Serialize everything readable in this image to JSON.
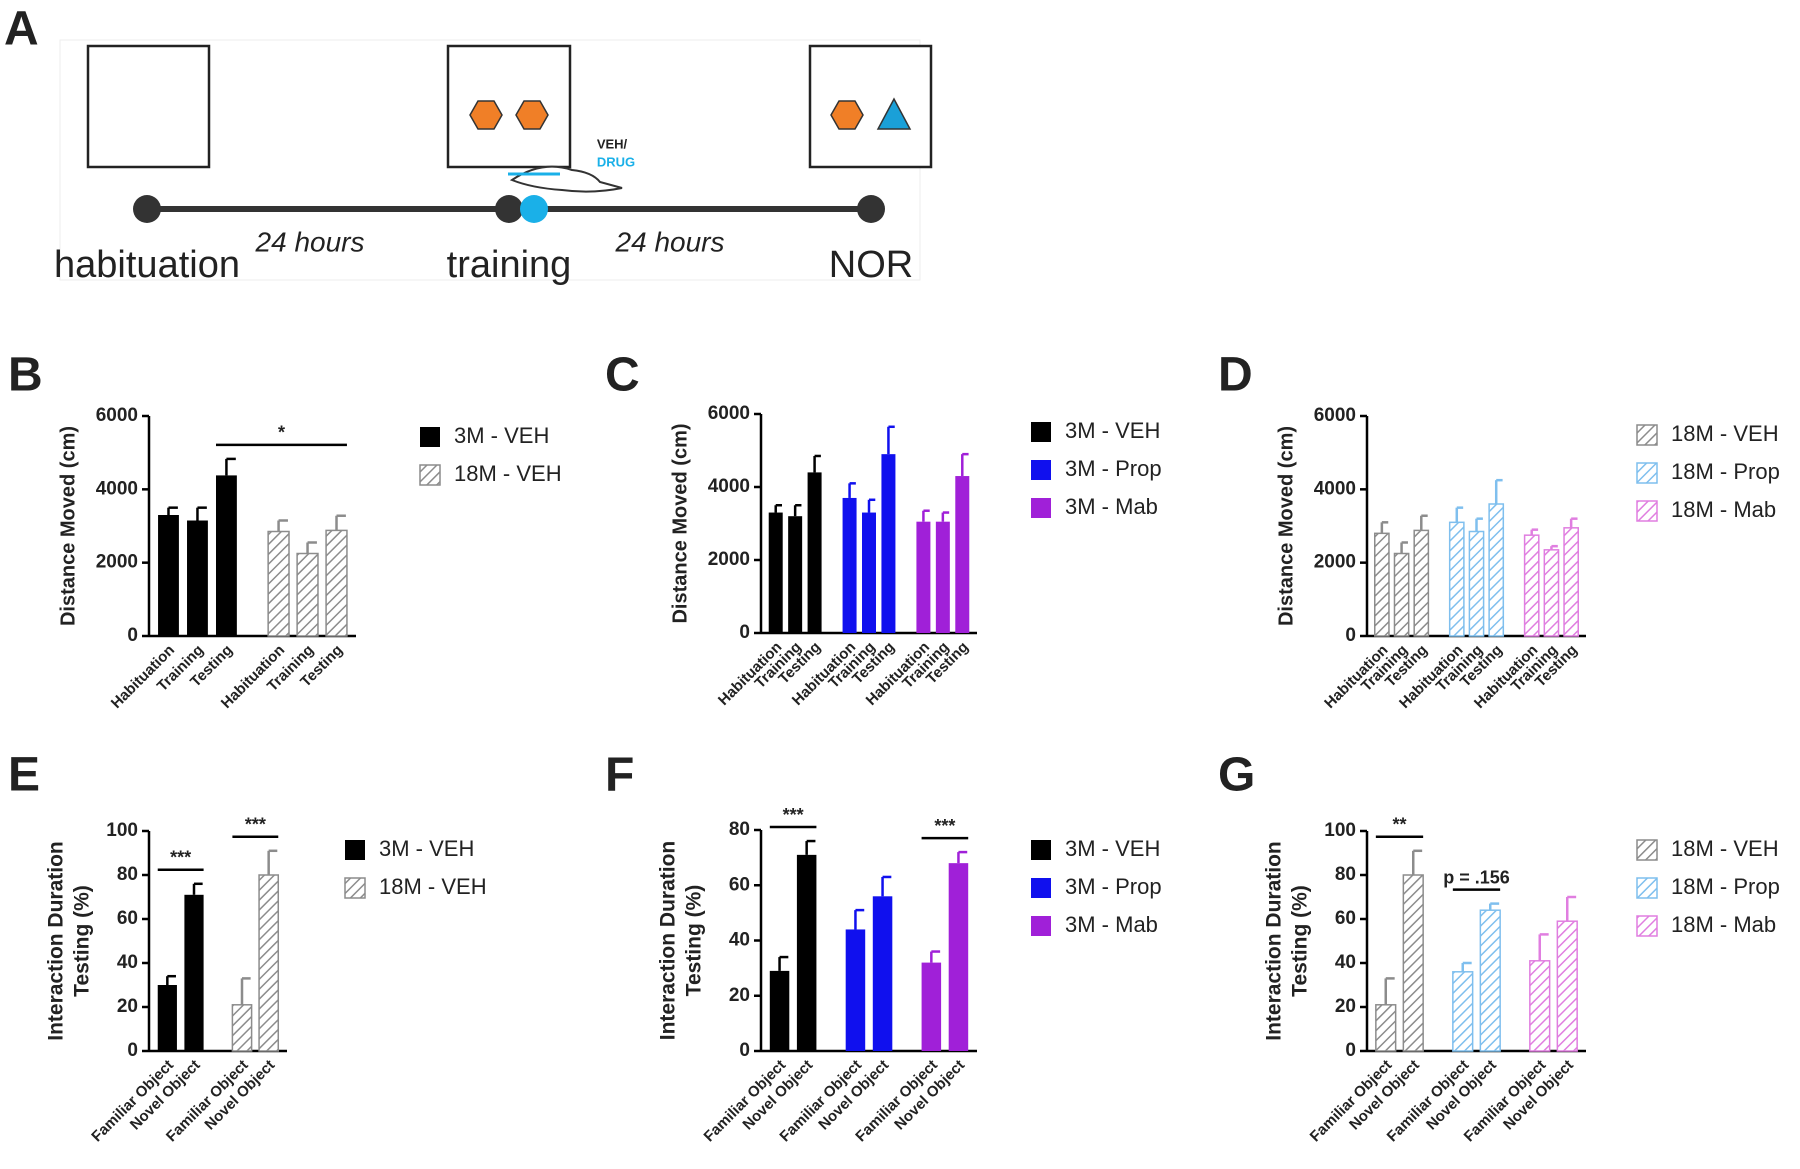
{
  "diagram": {
    "panel": "A",
    "stages": [
      "habituation",
      "training",
      "NOR"
    ],
    "intervals": [
      "24 hours",
      "24 hours"
    ],
    "treatment": [
      "VEH/",
      "DRUG"
    ]
  },
  "chart_data": [
    {
      "type": "bar",
      "panel": "B",
      "ylabel": "Distance Moved (cm)",
      "categories": [
        "Habituation",
        "Training",
        "Testing"
      ],
      "series": [
        {
          "name": "3M - VEH",
          "color": "#000000",
          "hatch": false,
          "values": [
            3300,
            3150,
            4380
          ],
          "errors": [
            200,
            350,
            450
          ]
        },
        {
          "name": "18M - VEH",
          "color": "#8c8c8c",
          "hatch": true,
          "values": [
            2850,
            2250,
            2880
          ],
          "errors": [
            300,
            300,
            400
          ]
        }
      ],
      "ylim": [
        0,
        6000
      ],
      "yticks": [
        0,
        2000,
        4000,
        6000
      ],
      "annotations": [
        {
          "text": "*",
          "from": {
            "series": 0,
            "category": 2
          },
          "to": {
            "series": 1,
            "category": 2
          }
        }
      ]
    },
    {
      "type": "bar",
      "panel": "C",
      "ylabel": "Distance Moved (cm)",
      "categories": [
        "Habituation",
        "Training",
        "Testing"
      ],
      "series": [
        {
          "name": "3M - VEH",
          "color": "#000000",
          "hatch": false,
          "values": [
            3300,
            3200,
            4400
          ],
          "errors": [
            200,
            300,
            450
          ]
        },
        {
          "name": "3M - Prop",
          "color": "#1010ee",
          "hatch": false,
          "values": [
            3700,
            3300,
            4900
          ],
          "errors": [
            400,
            350,
            750
          ]
        },
        {
          "name": "3M - Mab",
          "color": "#a020d8",
          "hatch": false,
          "values": [
            3050,
            3050,
            4300
          ],
          "errors": [
            300,
            250,
            600
          ]
        }
      ],
      "ylim": [
        0,
        6000
      ],
      "yticks": [
        0,
        2000,
        4000,
        6000
      ],
      "annotations": []
    },
    {
      "type": "bar",
      "panel": "D",
      "ylabel": "Distance Moved (cm)",
      "categories": [
        "Habituation",
        "Training",
        "Testing"
      ],
      "series": [
        {
          "name": "18M - VEH",
          "color": "#8c8c8c",
          "hatch": true,
          "values": [
            2800,
            2250,
            2880
          ],
          "errors": [
            300,
            300,
            400
          ]
        },
        {
          "name": "18M - Prop",
          "color": "#7fbfee",
          "hatch": true,
          "values": [
            3100,
            2850,
            3600
          ],
          "errors": [
            400,
            350,
            650
          ]
        },
        {
          "name": "18M - Mab",
          "color": "#e07ee0",
          "hatch": true,
          "values": [
            2750,
            2350,
            2950
          ],
          "errors": [
            150,
            100,
            250
          ]
        }
      ],
      "ylim": [
        0,
        6000
      ],
      "yticks": [
        0,
        2000,
        4000,
        6000
      ],
      "annotations": []
    },
    {
      "type": "bar",
      "panel": "E",
      "ylabel": [
        "Interaction Duration",
        "Testing (%)"
      ],
      "categories": [
        "Familiar Object",
        "Novel Object"
      ],
      "series": [
        {
          "name": "3M - VEH",
          "color": "#000000",
          "hatch": false,
          "values": [
            30,
            71
          ],
          "errors": [
            4,
            5
          ]
        },
        {
          "name": "18M - VEH",
          "color": "#8c8c8c",
          "hatch": true,
          "values": [
            21,
            80
          ],
          "errors": [
            12,
            11
          ]
        }
      ],
      "ylim": [
        0,
        100
      ],
      "yticks": [
        0,
        20,
        40,
        60,
        80,
        100
      ],
      "annotations": [
        {
          "text": "***",
          "from": {
            "series": 0,
            "category": 0
          },
          "to": {
            "series": 0,
            "category": 1
          }
        },
        {
          "text": "***",
          "from": {
            "series": 1,
            "category": 0
          },
          "to": {
            "series": 1,
            "category": 1
          }
        }
      ]
    },
    {
      "type": "bar",
      "panel": "F",
      "ylabel": [
        "Interaction Duration",
        "Testing (%)"
      ],
      "categories": [
        "Familiar Object",
        "Novel Object"
      ],
      "series": [
        {
          "name": "3M - VEH",
          "color": "#000000",
          "hatch": false,
          "values": [
            29,
            71
          ],
          "errors": [
            5,
            5
          ]
        },
        {
          "name": "3M - Prop",
          "color": "#1010ee",
          "hatch": false,
          "values": [
            44,
            56
          ],
          "errors": [
            7,
            7
          ]
        },
        {
          "name": "3M - Mab",
          "color": "#a020d8",
          "hatch": false,
          "values": [
            32,
            68
          ],
          "errors": [
            4,
            4
          ]
        }
      ],
      "ylim": [
        0,
        80
      ],
      "yticks": [
        0,
        20,
        40,
        60,
        80
      ],
      "annotations": [
        {
          "text": "***",
          "from": {
            "series": 0,
            "category": 0
          },
          "to": {
            "series": 0,
            "category": 1
          }
        },
        {
          "text": "***",
          "from": {
            "series": 2,
            "category": 0
          },
          "to": {
            "series": 2,
            "category": 1
          }
        }
      ]
    },
    {
      "type": "bar",
      "panel": "G",
      "ylabel": [
        "Interaction Duration",
        "Testing (%)"
      ],
      "categories": [
        "Familiar Object",
        "Novel Object"
      ],
      "series": [
        {
          "name": "18M - VEH",
          "color": "#8c8c8c",
          "hatch": true,
          "values": [
            21,
            80
          ],
          "errors": [
            12,
            11
          ]
        },
        {
          "name": "18M - Prop",
          "color": "#7fbfee",
          "hatch": true,
          "values": [
            36,
            64
          ],
          "errors": [
            4,
            3
          ]
        },
        {
          "name": "18M - Mab",
          "color": "#e07ee0",
          "hatch": true,
          "values": [
            41,
            59
          ],
          "errors": [
            12,
            11
          ]
        }
      ],
      "ylim": [
        0,
        100
      ],
      "yticks": [
        0,
        20,
        40,
        60,
        80,
        100
      ],
      "annotations": [
        {
          "text": "**",
          "from": {
            "series": 0,
            "category": 0
          },
          "to": {
            "series": 0,
            "category": 1
          }
        },
        {
          "text": "p = .156",
          "from": {
            "series": 1,
            "category": 0
          },
          "to": {
            "series": 1,
            "category": 1
          }
        }
      ]
    }
  ]
}
